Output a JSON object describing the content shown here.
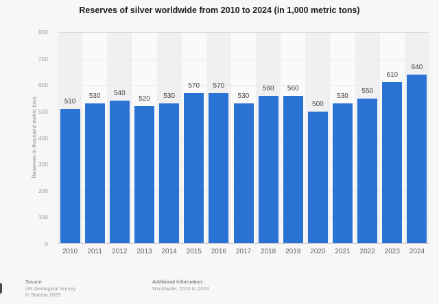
{
  "title": "Reserves of silver worldwide from 2010 to 2024 (in 1,000 metric tons)",
  "chart_data": {
    "type": "bar",
    "categories": [
      "2010",
      "2011",
      "2012",
      "2013",
      "2014",
      "2015",
      "2016",
      "2017",
      "2018",
      "2019",
      "2020",
      "2021",
      "2022",
      "2023",
      "2024"
    ],
    "values": [
      510,
      530,
      540,
      520,
      530,
      570,
      570,
      530,
      560,
      560,
      500,
      530,
      550,
      610,
      640
    ],
    "title": "Reserves of silver worldwide from 2010 to 2024 (in 1,000 metric tons)",
    "xlabel": "",
    "ylabel": "Reserves in thousand metric tons",
    "ylim": [
      0,
      800
    ],
    "y_ticks": [
      0,
      100,
      200,
      300,
      400,
      500,
      600,
      700,
      800
    ],
    "grid": true,
    "legend": false,
    "value_labels": true,
    "bar_color": "#2b72d5"
  },
  "footer": {
    "source_label": "Source",
    "source_line1": "US Geological Survey",
    "source_line2": "© Statista 2025",
    "additional_label": "Additional Information:",
    "additional_line1": "Worldwide; 2010 to 2024"
  }
}
